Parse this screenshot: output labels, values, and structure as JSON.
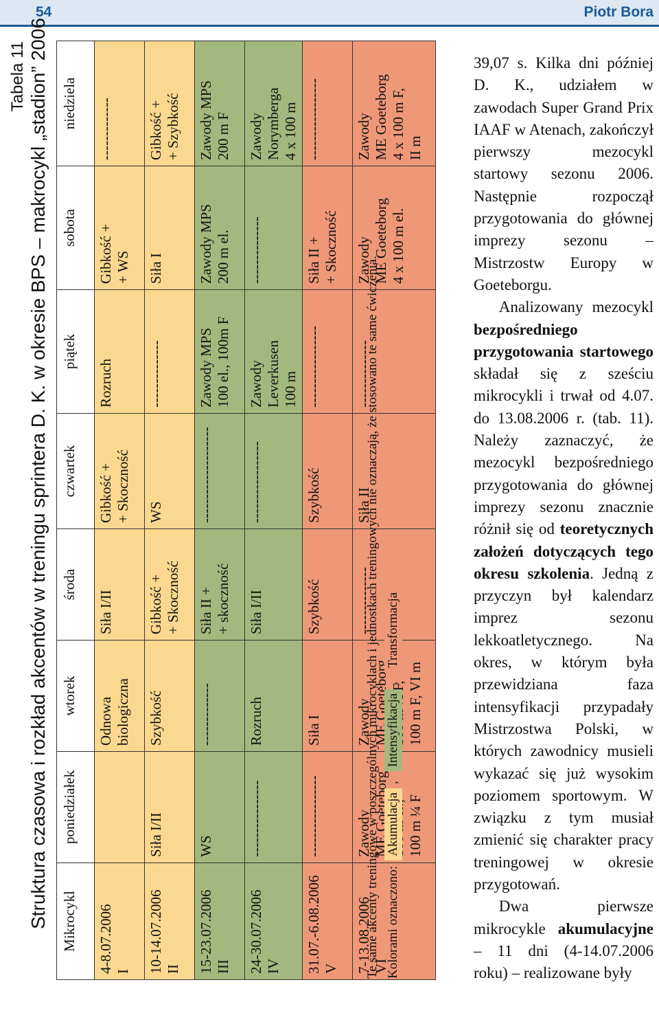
{
  "header": {
    "page_number": "54",
    "author": "Piotr Bora"
  },
  "table": {
    "number": "Tabela 11",
    "caption": "Struktura czasowa i rozkład akcentów w treningu sprintera D. K. w okresie BPS – makrocykl „stadion” 2006",
    "columns": [
      "Mikrocykl",
      "poniedziałek",
      "wtorek",
      "środa",
      "czwartek",
      "piątek",
      "sobota",
      "niedziela"
    ],
    "rows": [
      {
        "dates": "4-8.07.2006",
        "num": "I",
        "cells": [
          [],
          [
            "Odnowa",
            "biologiczna"
          ],
          [
            "Siła I/II"
          ],
          [
            "Gibkość +",
            "+ Skoczność"
          ],
          [
            "Rozruch"
          ],
          [
            "Gibkość +",
            "+ WS"
          ],
          [
            "-------------"
          ]
        ]
      },
      {
        "dates": "10-14.07.2006",
        "num": "II",
        "cells": [
          [
            "Siła I/II"
          ],
          [
            "Szybkość"
          ],
          [
            "Gibkość +",
            "+ Skoczność"
          ],
          [
            "WS"
          ],
          [
            "--------------"
          ],
          [
            "Siła I"
          ],
          [
            "Gibkość +",
            "+ Szybkość"
          ]
        ]
      },
      {
        "dates": "15-23.07.2006",
        "num": "III",
        "cells": [
          [
            "WS"
          ],
          [
            "-------------"
          ],
          [
            "Siła II +",
            "+ skoczność"
          ],
          [
            "--------------------"
          ],
          [
            "Zawody MPS",
            "100 el., 100m F"
          ],
          [
            "Zawody MPS",
            "200 m el."
          ],
          [
            "Zawody MPS",
            "200 m F"
          ]
        ]
      },
      {
        "dates": "24-30.07.2006",
        "num": "IV",
        "cells": [
          [
            "----------------"
          ],
          [
            "Rozruch"
          ],
          [
            "Siła I/II"
          ],
          [
            "-----------------"
          ],
          [
            "Zawody",
            "Leverkusen",
            "100 m"
          ],
          [
            "--------------"
          ],
          [
            "Zawody",
            "Norymberga",
            "4 x 100 m"
          ]
        ]
      },
      {
        "dates": "31.07.-6.08.2006",
        "num": "V",
        "cells": [
          [
            "-----------------"
          ],
          [
            "Siła I"
          ],
          [
            "Szybkość"
          ],
          [
            "Szybkość"
          ],
          [
            "-----------------"
          ],
          [
            "Siła II +",
            "+ Skoczność"
          ],
          [
            "-----------------"
          ]
        ]
      },
      {
        "dates": "7-13.08.2006",
        "num": "VI",
        "cells": [
          [
            "Zawody",
            "ME Goeteborg",
            "100 m el.,",
            "100 m ¼ F"
          ],
          [
            "Zawody",
            "ME Goeteborg",
            "100 m ½ F,",
            "100 m F, VI m"
          ],
          [
            "--------------"
          ],
          [
            "Siła II"
          ],
          [
            "--------------"
          ],
          [
            "Zawody",
            "ME Goeteborg",
            "4 x 100 m el."
          ],
          [
            "Zawody",
            "ME Goeteborg",
            "4 x 100 m F,",
            "II m"
          ]
        ]
      }
    ],
    "note": "Te same akcenty treningowe w poszczególnych mikrocyklach i jednostkach treningowych nie oznaczają, że stosowano te same ćwiczenia.",
    "legend": {
      "prefix": "Kolorami oznaczono:",
      "items": [
        {
          "label": "Akumulacja",
          "color": "#fbd88f"
        },
        {
          "label": "Intensyfikacja",
          "color": "#a3b87e"
        },
        {
          "label": "Transformacja",
          "color": "#ef9878"
        }
      ],
      "separator": ","
    },
    "row_colors": [
      "#fbd88f",
      "#fbd88f",
      "#a3b87e",
      "#a3b87e",
      "#ef9878",
      "#ef9878"
    ]
  },
  "body_text": {
    "p1": "39,07 s. Kilka dni później D. K., udziałem w zawodach Super Grand Prix IAAF w Atenach, zakończył pierwszy mezocykl startowy sezonu 2006. Następnie rozpoczął przygotowania do głównej imprezy sezonu – Mistrzostw Europy w Goeteborgu.",
    "p2_a": "Analizowany mezocykl ",
    "p2_b": "bezpośredniego przygotowania startowego",
    "p2_c": " składał się z sześciu mikrocykli i trwał od 4.07. do 13.08.2006 r. (tab. 11). Należy zaznaczyć, że mezocykl bezpośredniego przygotowania do głównej imprezy sezonu znacznie różnił się od ",
    "p2_d": "teoretycznych założeń dotyczących tego okresu szkolenia",
    "p2_e": ". Jedną z przyczyn był kalendarz imprez sezonu lekkoatletycznego. Na okres, w którym była przewidziana faza intensyfikacji przypadały Mistrzostwa Polski, w których zawodnicy musieli wykazać się już wysokim poziomem sportowym. W związku z tym musiał zmienić się charakter pracy treningowej w okresie przygotowań.",
    "p3_a": "Dwa pierwsze mikrocykle ",
    "p3_b": "akumulacyjne",
    "p3_c": " – 11 dni (4-14.07.2006 roku) – realizowane były"
  }
}
